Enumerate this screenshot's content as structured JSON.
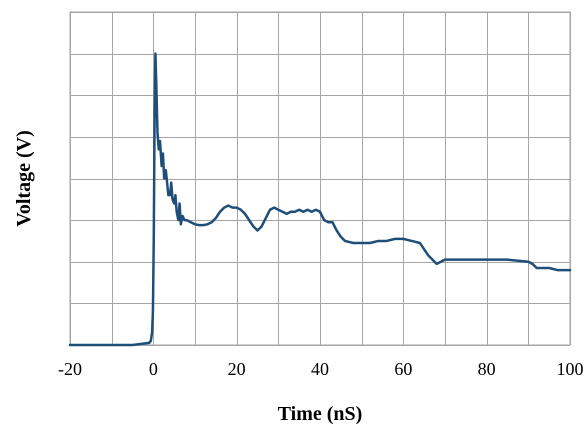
{
  "chart_data": {
    "type": "line",
    "title": "",
    "xlabel": "Time  (nS)",
    "ylabel": "Voltage (V)",
    "xlim": [
      -20,
      100
    ],
    "ylim": [
      0,
      8
    ],
    "x_ticks": [
      -20,
      0,
      20,
      40,
      60,
      80,
      100
    ],
    "x_tick_labels": [
      "-20",
      "0",
      "20",
      "40",
      "60",
      "80",
      "100"
    ],
    "x_minor_step": 10,
    "y_grid_step": 1,
    "grid": true,
    "legend": "none",
    "colors": {
      "series": "#1f4e79",
      "grid": "#a6a6a6",
      "background": "#ffffff"
    },
    "series": [
      {
        "x": [
          -20,
          -15,
          -10,
          -5,
          -1,
          -0.6,
          -0.3,
          -0.1,
          0.1,
          0.3,
          0.5,
          0.7,
          1.0,
          1.3,
          1.6,
          2.0,
          2.3,
          2.6,
          3.0,
          3.3,
          3.6,
          4.0,
          4.3,
          4.6,
          5.0,
          5.3,
          5.6,
          6.0,
          6.3,
          6.6,
          7.0,
          7.5,
          8,
          9,
          10,
          11,
          12,
          13,
          14,
          15,
          16,
          17,
          18,
          19,
          20,
          21,
          22,
          23,
          24,
          25,
          26,
          27,
          28,
          29,
          30,
          31,
          32,
          33,
          34,
          35,
          36,
          37,
          38,
          39,
          40,
          41,
          42,
          43,
          44,
          45,
          46,
          48,
          50,
          52,
          54,
          56,
          58,
          60,
          62,
          64,
          65,
          66,
          67,
          68,
          70,
          75,
          80,
          85,
          90,
          91,
          92,
          93,
          95,
          97,
          100
        ],
        "y": [
          0.0,
          0.0,
          0.0,
          0.0,
          0.05,
          0.1,
          0.3,
          0.8,
          2.5,
          5.5,
          7.0,
          6.3,
          5.1,
          4.7,
          4.9,
          4.3,
          4.6,
          4.0,
          4.2,
          3.9,
          3.6,
          3.6,
          3.9,
          3.5,
          3.4,
          3.6,
          3.2,
          3.0,
          3.4,
          2.9,
          3.1,
          3.0,
          3.0,
          2.95,
          2.9,
          2.88,
          2.88,
          2.9,
          2.95,
          3.05,
          3.2,
          3.3,
          3.35,
          3.3,
          3.3,
          3.25,
          3.15,
          3.0,
          2.85,
          2.75,
          2.85,
          3.05,
          3.25,
          3.3,
          3.25,
          3.2,
          3.15,
          3.2,
          3.2,
          3.25,
          3.2,
          3.25,
          3.2,
          3.25,
          3.2,
          3.0,
          2.95,
          2.95,
          2.75,
          2.6,
          2.5,
          2.45,
          2.45,
          2.45,
          2.5,
          2.5,
          2.55,
          2.55,
          2.5,
          2.45,
          2.3,
          2.15,
          2.05,
          1.95,
          2.05,
          2.05,
          2.05,
          2.05,
          2.0,
          1.95,
          1.85,
          1.85,
          1.85,
          1.8,
          1.8
        ]
      }
    ]
  }
}
